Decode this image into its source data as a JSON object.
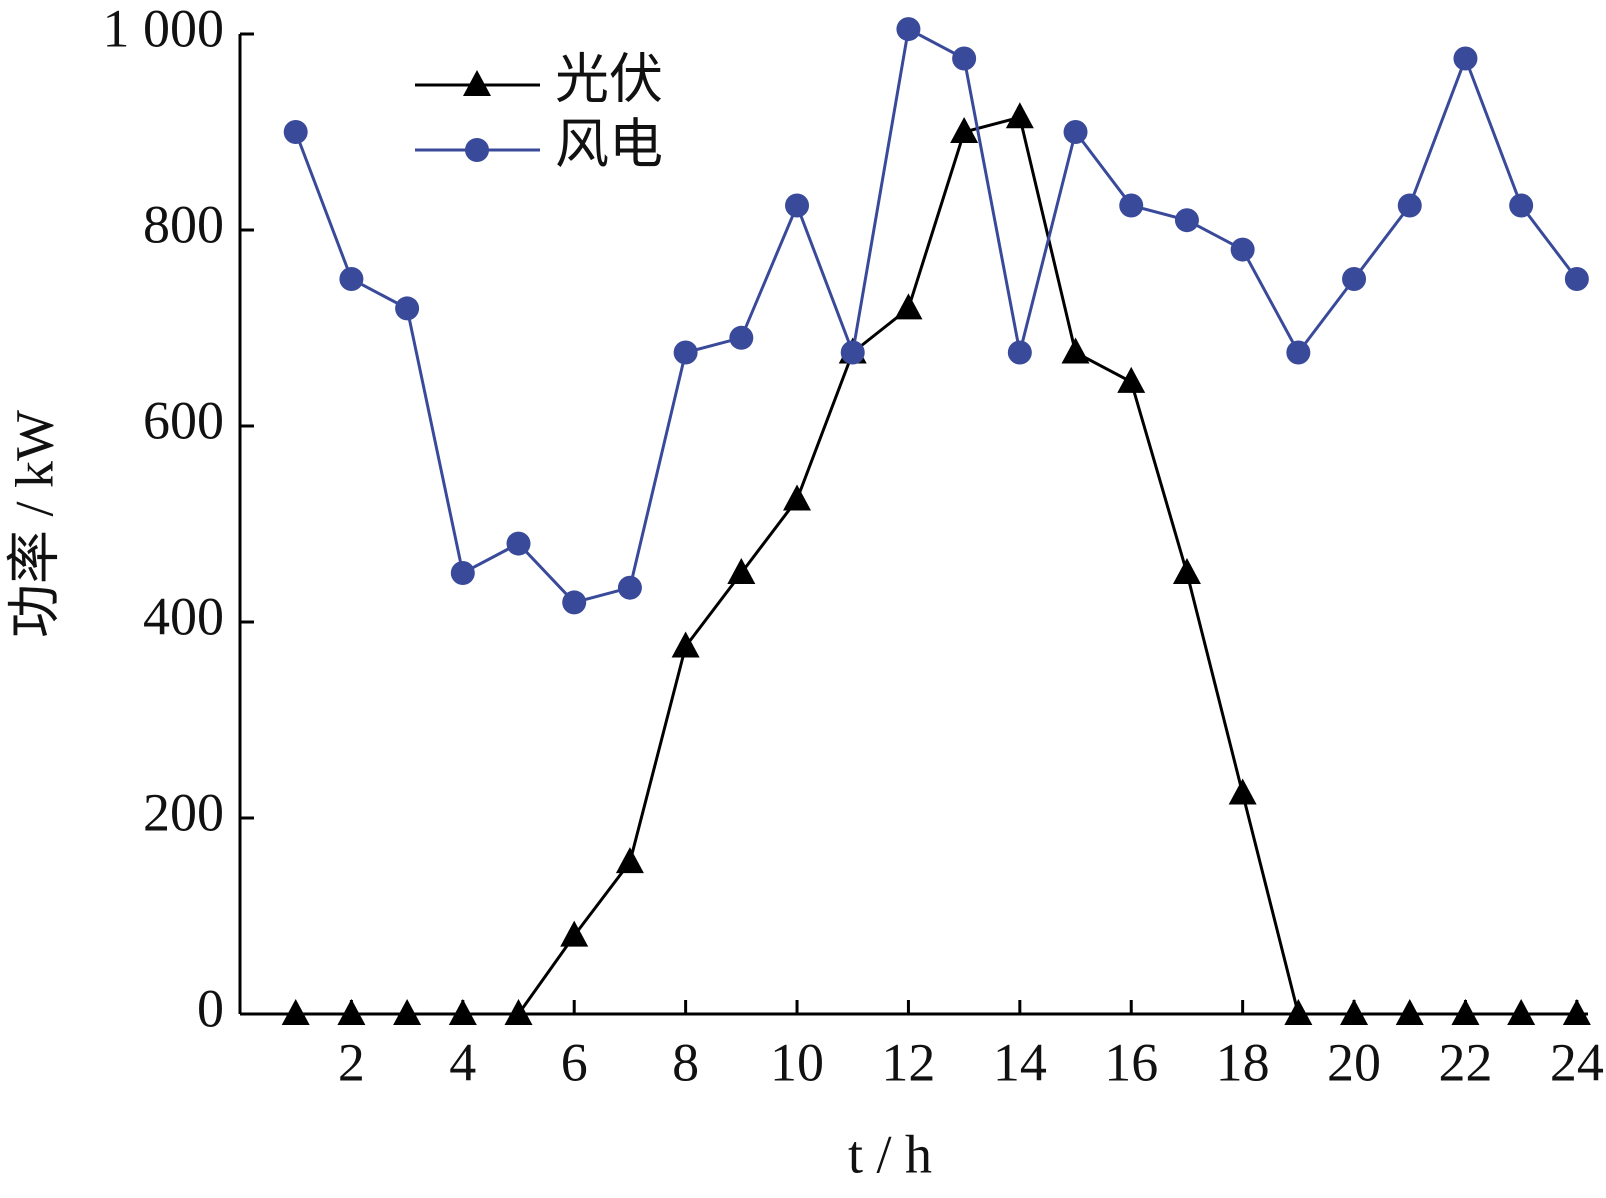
{
  "chart_data": {
    "type": "line",
    "x_label": "t / h",
    "y_label": "功率 / kW",
    "x": [
      1,
      2,
      3,
      4,
      5,
      6,
      7,
      8,
      9,
      10,
      11,
      12,
      13,
      14,
      15,
      16,
      17,
      18,
      19,
      20,
      21,
      22,
      23,
      24
    ],
    "series": [
      {
        "name": "光伏",
        "color": "#000000",
        "marker": "triangle",
        "values": [
          0,
          0,
          0,
          0,
          0,
          80,
          155,
          375,
          450,
          525,
          675,
          720,
          900,
          915,
          675,
          645,
          450,
          225,
          0,
          0,
          0,
          0,
          0,
          0
        ]
      },
      {
        "name": "风电",
        "color": "#3a4a9a",
        "marker": "circle",
        "values": [
          900,
          750,
          720,
          450,
          480,
          420,
          435,
          675,
          690,
          825,
          675,
          1005,
          975,
          675,
          900,
          825,
          810,
          780,
          675,
          750,
          825,
          975,
          825,
          750
        ]
      }
    ],
    "xlim": [
      0,
      24.2
    ],
    "xticks": [
      2,
      4,
      6,
      8,
      10,
      12,
      14,
      16,
      18,
      20,
      22,
      24
    ],
    "ylim": [
      0,
      1000
    ],
    "yticks": [
      0,
      200,
      400,
      600,
      800,
      {
        "value": 1000,
        "label": "1 000"
      }
    ],
    "legend": "upper left"
  }
}
